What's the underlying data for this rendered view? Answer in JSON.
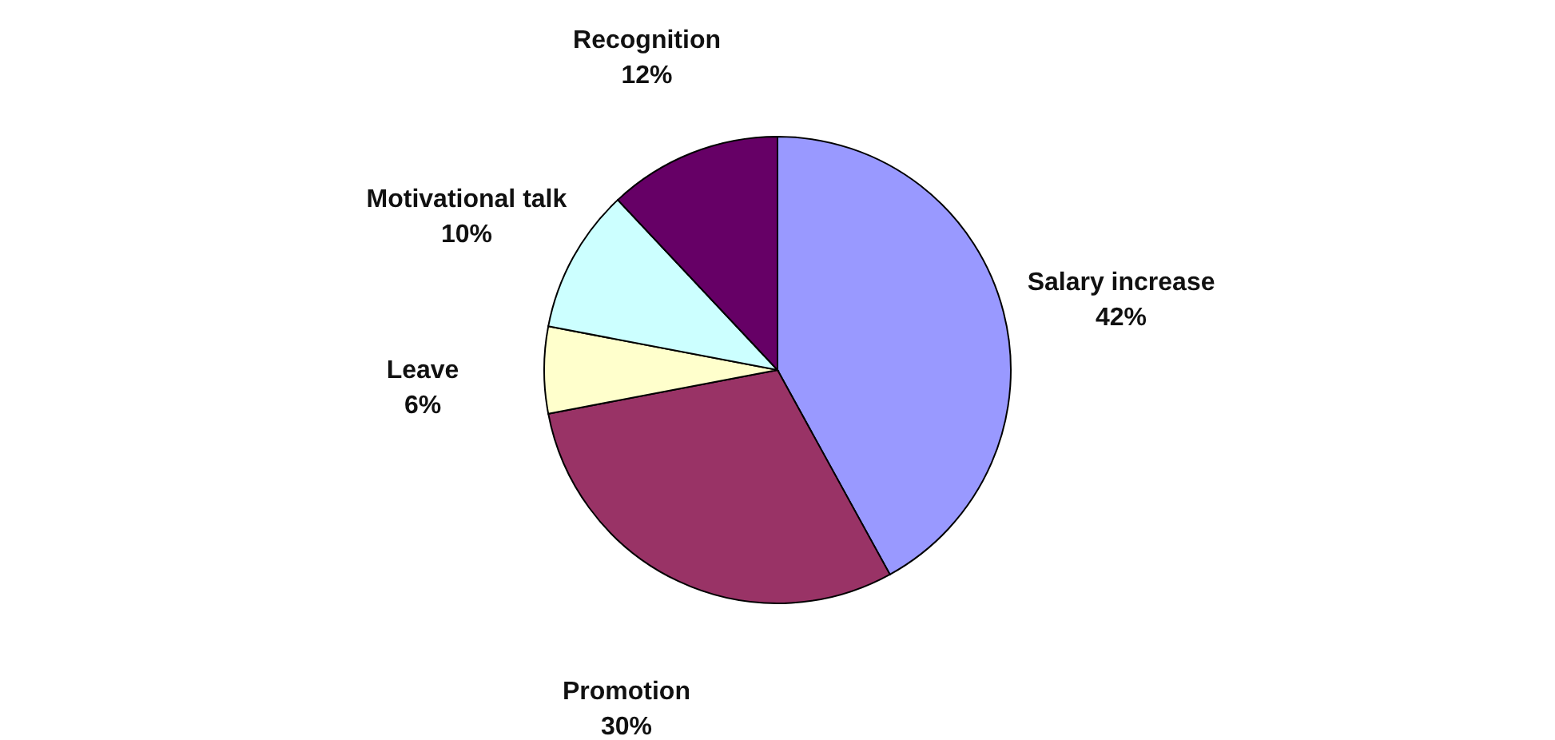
{
  "chart_data": {
    "type": "pie",
    "categories": [
      "Salary increase",
      "Promotion",
      "Leave",
      "Motivational talk",
      "Recognition"
    ],
    "values": [
      42,
      30,
      6,
      10,
      12
    ],
    "colors": [
      "#9999ff",
      "#993366",
      "#ffffcc",
      "#ccffff",
      "#660066"
    ],
    "value_labels": [
      "42%",
      "30%",
      "6%",
      "10%",
      "12%"
    ]
  }
}
